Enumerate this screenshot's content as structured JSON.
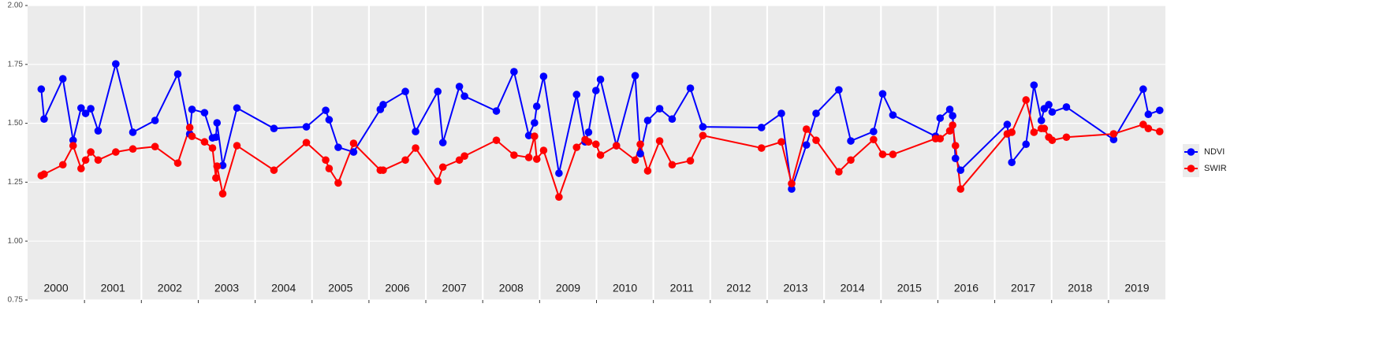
{
  "chart_data": {
    "type": "line",
    "x": [
      2000.24,
      2000.29,
      2000.62,
      2000.8,
      2000.94,
      2001.02,
      2001.11,
      2001.24,
      2001.55,
      2001.85,
      2002.24,
      2002.64,
      2002.85,
      2002.89,
      2003.11,
      2003.25,
      2003.31,
      2003.33,
      2003.43,
      2003.68,
      2004.33,
      2004.9,
      2005.24,
      2005.3,
      2005.46,
      2005.73,
      2006.2,
      2006.25,
      2006.64,
      2006.82,
      2007.21,
      2007.3,
      2007.59,
      2007.68,
      2008.24,
      2008.55,
      2008.81,
      2008.91,
      2008.95,
      2009.07,
      2009.34,
      2009.65,
      2009.8,
      2009.86,
      2009.99,
      2010.07,
      2010.35,
      2010.68,
      2010.77,
      2010.9,
      2011.11,
      2011.33,
      2011.65,
      2011.87,
      2012.9,
      2013.25,
      2013.43,
      2013.69,
      2013.86,
      2014.26,
      2014.47,
      2014.87,
      2015.03,
      2015.21,
      2015.96,
      2016.04,
      2016.21,
      2016.26,
      2016.31,
      2016.4,
      2017.22,
      2017.3,
      2017.55,
      2017.69,
      2017.82,
      2017.87,
      2017.95,
      2018.01,
      2018.26,
      2019.09,
      2019.61,
      2019.7,
      2019.9
    ],
    "series": [
      {
        "name": "NDVI",
        "color": "#0000ff",
        "values": [
          1.645,
          1.518,
          1.689,
          1.428,
          1.565,
          1.542,
          1.562,
          1.468,
          1.752,
          1.462,
          1.512,
          1.709,
          1.455,
          1.559,
          1.545,
          1.438,
          1.441,
          1.502,
          1.321,
          1.565,
          1.478,
          1.485,
          1.555,
          1.515,
          1.398,
          1.378,
          1.559,
          1.579,
          1.635,
          1.465,
          1.635,
          1.418,
          1.656,
          1.615,
          1.552,
          1.719,
          1.448,
          1.502,
          1.572,
          1.699,
          1.288,
          1.622,
          1.421,
          1.462,
          1.639,
          1.686,
          1.405,
          1.702,
          1.371,
          1.512,
          1.562,
          1.518,
          1.649,
          1.485,
          1.482,
          1.542,
          1.221,
          1.408,
          1.542,
          1.642,
          1.425,
          1.465,
          1.625,
          1.535,
          1.445,
          1.522,
          1.559,
          1.532,
          1.351,
          1.301,
          1.495,
          1.334,
          1.411,
          1.662,
          1.512,
          1.562,
          1.579,
          1.548,
          1.569,
          1.431,
          1.645,
          1.538,
          1.555
        ]
      },
      {
        "name": "SWIR",
        "color": "#ff0000",
        "values": [
          1.278,
          1.284,
          1.324,
          1.405,
          1.308,
          1.344,
          1.378,
          1.344,
          1.378,
          1.391,
          1.401,
          1.331,
          1.482,
          1.445,
          1.421,
          1.395,
          1.268,
          1.318,
          1.201,
          1.405,
          1.301,
          1.418,
          1.344,
          1.308,
          1.247,
          1.415,
          1.301,
          1.301,
          1.344,
          1.395,
          1.254,
          1.314,
          1.344,
          1.361,
          1.428,
          1.365,
          1.355,
          1.445,
          1.348,
          1.385,
          1.187,
          1.398,
          1.431,
          1.421,
          1.411,
          1.365,
          1.405,
          1.344,
          1.411,
          1.298,
          1.425,
          1.324,
          1.341,
          1.448,
          1.395,
          1.421,
          1.244,
          1.475,
          1.428,
          1.294,
          1.344,
          1.431,
          1.368,
          1.368,
          1.435,
          1.435,
          1.468,
          1.492,
          1.405,
          1.221,
          1.455,
          1.462,
          1.599,
          1.462,
          1.478,
          1.478,
          1.441,
          1.428,
          1.441,
          1.455,
          1.495,
          1.478,
          1.465
        ]
      }
    ],
    "xlim": [
      2000,
      2020
    ],
    "xticks": [
      2001,
      2002,
      2003,
      2004,
      2005,
      2006,
      2007,
      2008,
      2009,
      2010,
      2011,
      2012,
      2013,
      2014,
      2015,
      2016,
      2017,
      2018,
      2019
    ],
    "ylim": [
      0.75,
      2
    ],
    "yticks": [
      0.75,
      {
        "value": 1,
        "label": "1.00"
      },
      1.25,
      {
        "value": 1.5,
        "label": "1.50"
      },
      1.75,
      {
        "value": 2,
        "label": "2.00"
      }
    ],
    "annotations": [
      {
        "x": 2000.5,
        "text": "2000"
      },
      {
        "x": 2001.5,
        "text": "2001"
      },
      {
        "x": 2002.5,
        "text": "2002"
      },
      {
        "x": 2003.5,
        "text": "2003"
      },
      {
        "x": 2004.5,
        "text": "2004"
      },
      {
        "x": 2005.5,
        "text": "2005"
      },
      {
        "x": 2006.5,
        "text": "2006"
      },
      {
        "x": 2007.5,
        "text": "2007"
      },
      {
        "x": 2008.5,
        "text": "2008"
      },
      {
        "x": 2009.5,
        "text": "2009"
      },
      {
        "x": 2010.5,
        "text": "2010"
      },
      {
        "x": 2011.5,
        "text": "2011"
      },
      {
        "x": 2012.5,
        "text": "2012"
      },
      {
        "x": 2013.5,
        "text": "2013"
      },
      {
        "x": 2014.5,
        "text": "2014"
      },
      {
        "x": 2015.5,
        "text": "2015"
      },
      {
        "x": 2016.5,
        "text": "2016"
      },
      {
        "x": 2017.5,
        "text": "2017"
      },
      {
        "x": 2018.5,
        "text": "2018"
      },
      {
        "x": 2019.5,
        "text": "2019"
      }
    ],
    "grid": true,
    "legend": "right"
  }
}
